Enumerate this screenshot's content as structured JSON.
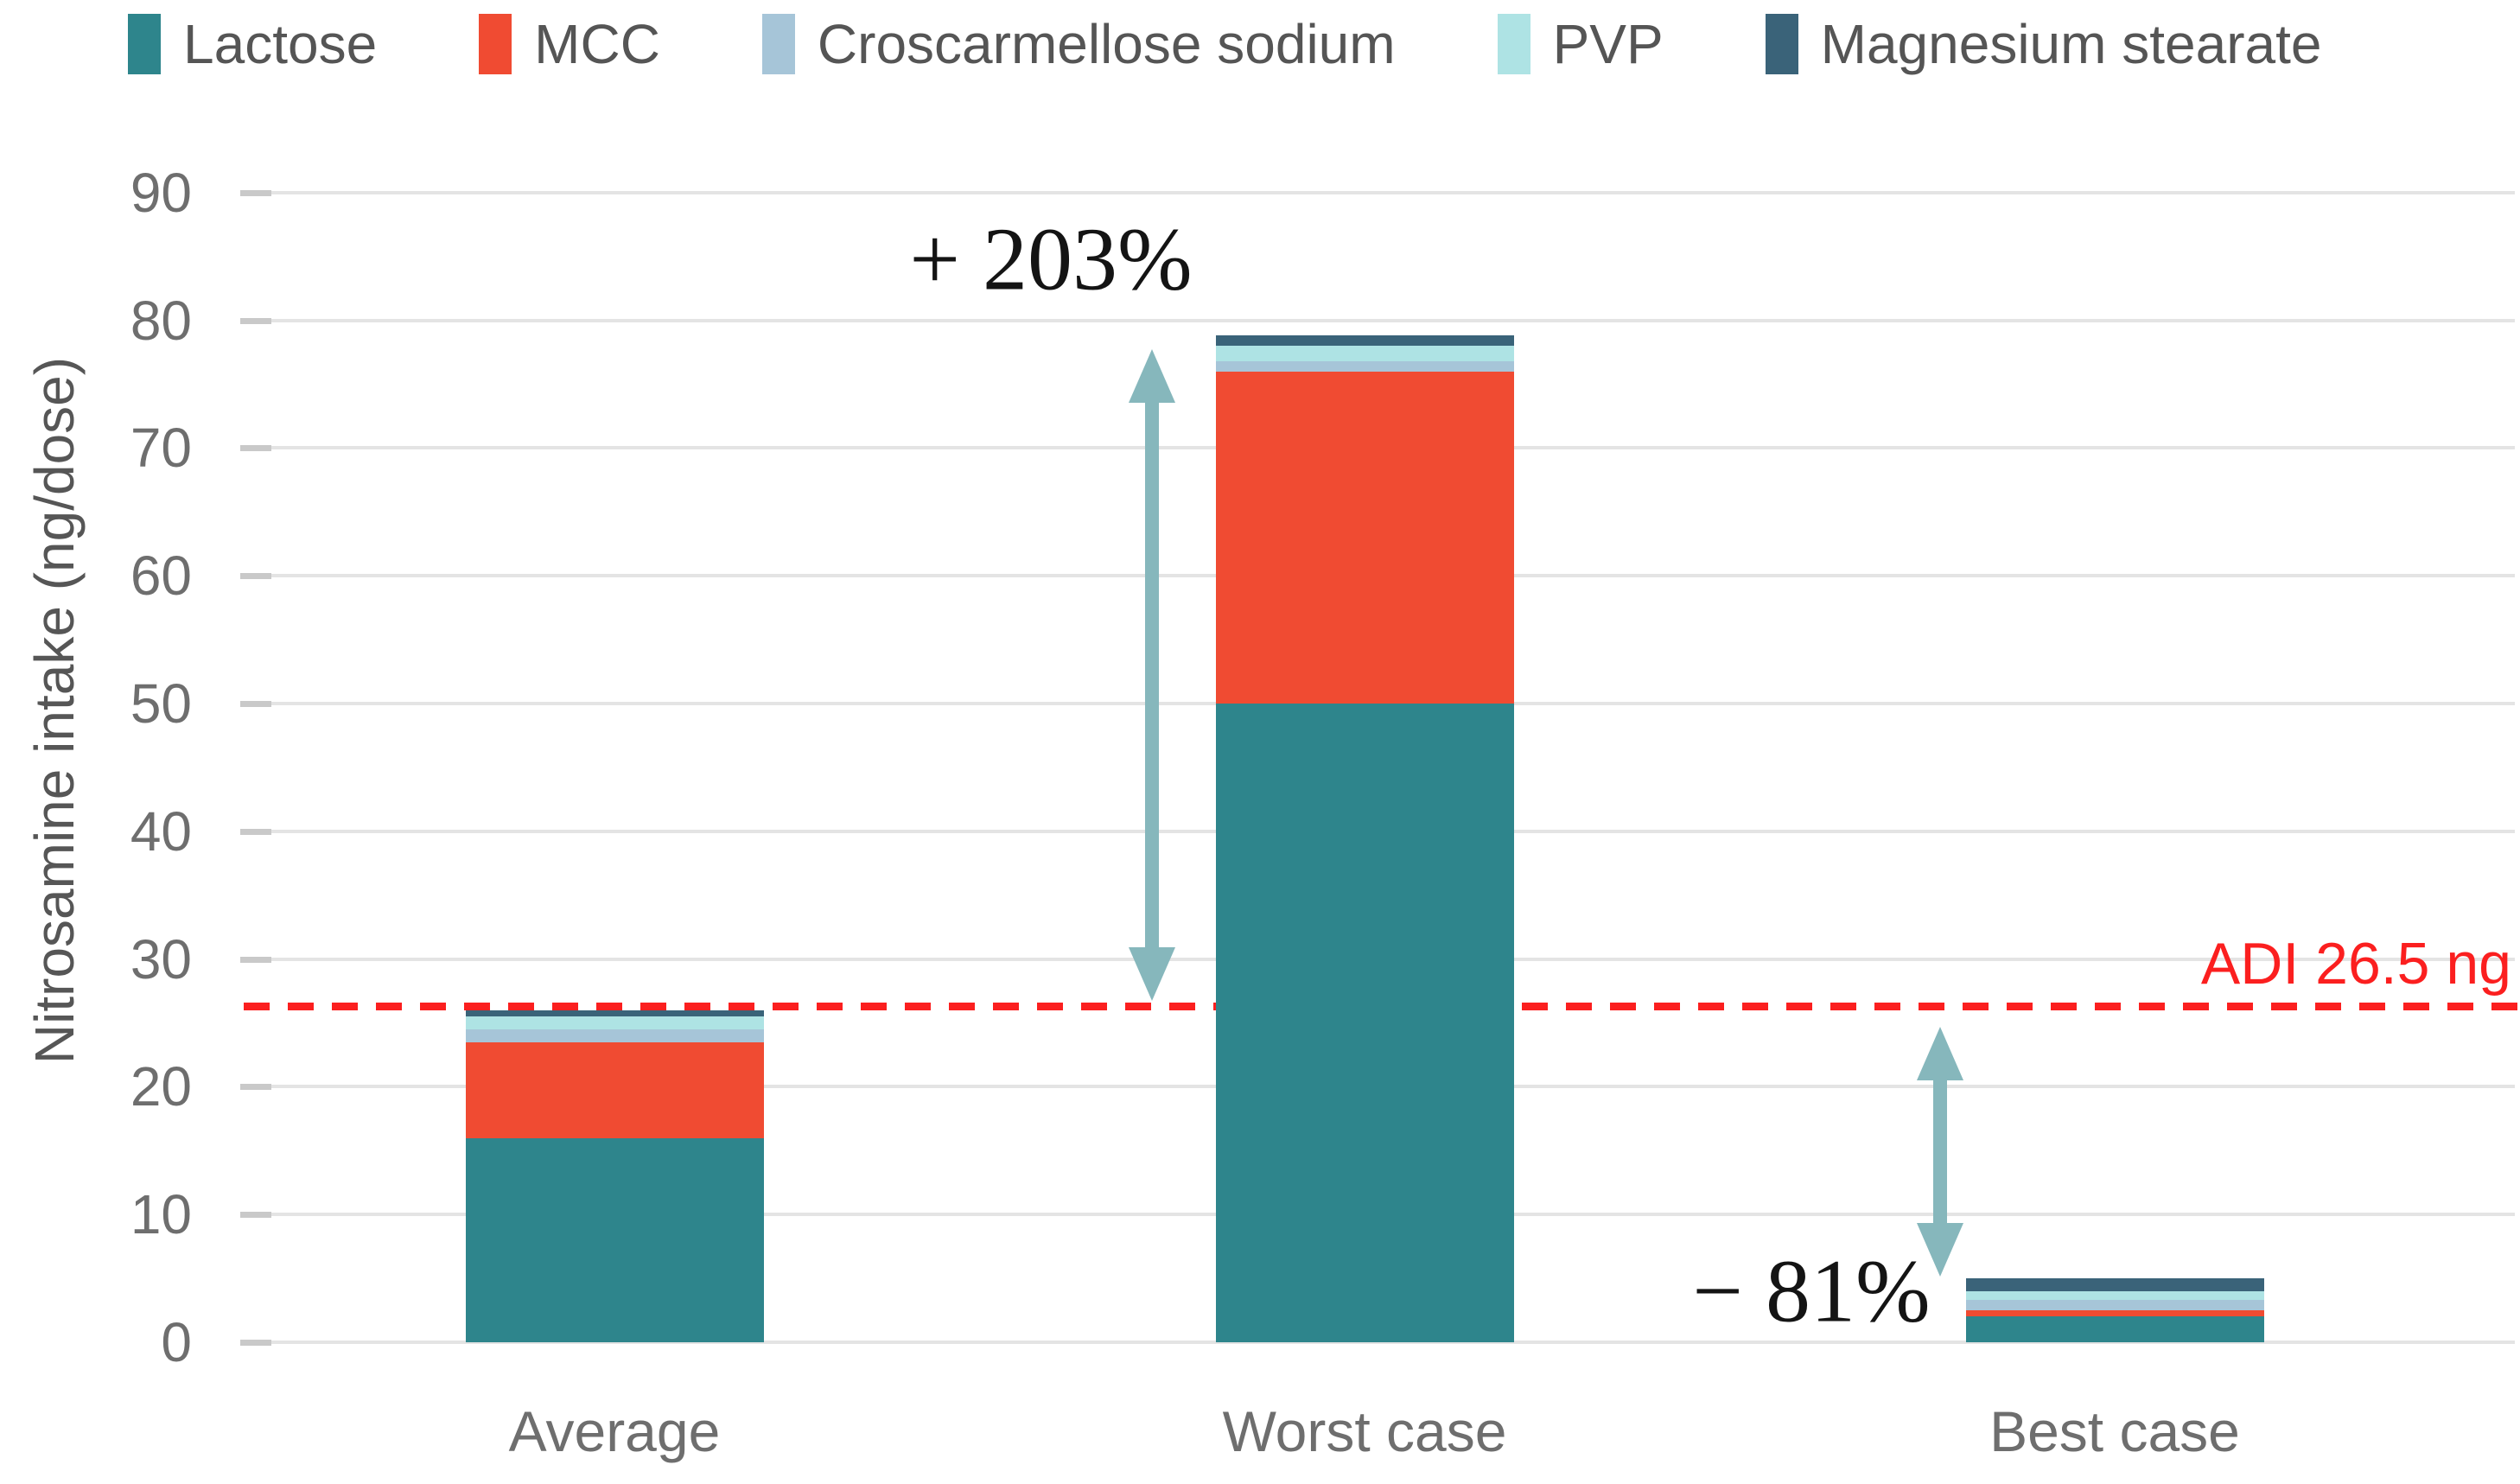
{
  "chart_data": {
    "type": "bar",
    "stacked": true,
    "categories": [
      "Average",
      "Worst case",
      "Best case"
    ],
    "series": [
      {
        "name": "Lactose",
        "color": "#2E858C",
        "values": [
          16,
          50,
          2.0
        ]
      },
      {
        "name": "MCC",
        "color": "#F04B32",
        "values": [
          7.5,
          26,
          0.5
        ]
      },
      {
        "name": "Croscarmellose sodium",
        "color": "#A6C5D8",
        "values": [
          1.0,
          0.8,
          0.8
        ]
      },
      {
        "name": "PVP",
        "color": "#AEE3E4",
        "values": [
          1.0,
          1.2,
          0.7
        ]
      },
      {
        "name": "Magnesium stearate",
        "color": "#3A6379",
        "values": [
          0.5,
          0.8,
          1.0
        ]
      }
    ],
    "totals": [
      26.0,
      78.8,
      5.0
    ],
    "ylabel": "Nitrosamine intake (ng/dose)",
    "ylim": [
      0,
      90
    ],
    "yticks": [
      0,
      10,
      20,
      30,
      40,
      50,
      60,
      70,
      80,
      90
    ],
    "grid": true,
    "legend_position": "top",
    "reference_line": {
      "value": 26.5,
      "label": "ADI 26.5 ng",
      "color": "#FB1F1F"
    },
    "annotations": [
      {
        "text": "+ 203%",
        "target": "Worst case"
      },
      {
        "text": "− 81%",
        "target": "Best case"
      }
    ],
    "arrow_color": "#86B7BC"
  }
}
